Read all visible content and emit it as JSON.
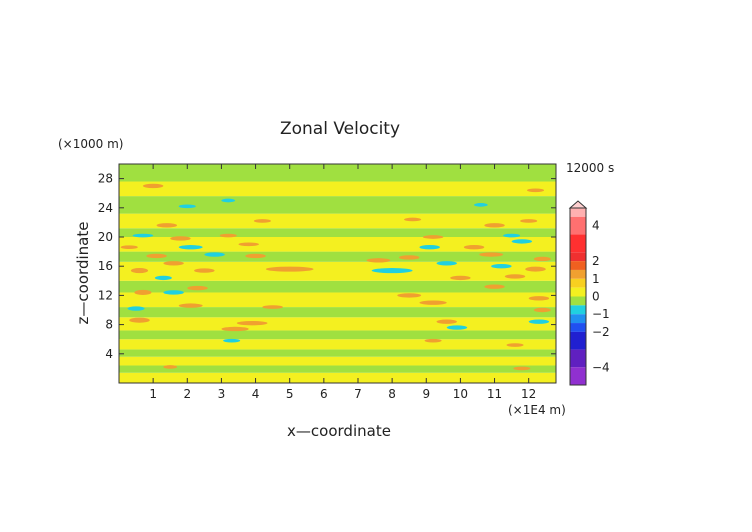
{
  "chart_data": {
    "type": "heatmap",
    "title": "Zonal Velocity",
    "xlabel": "x—coordinate",
    "ylabel": "z—coordinate",
    "x_unit": "(×1E4 m)",
    "y_unit": "(×1000 m)",
    "time_label": "12000 s",
    "xlim": [
      0,
      12.8
    ],
    "ylim": [
      0,
      30
    ],
    "x_ticks": [
      1,
      2,
      3,
      4,
      5,
      6,
      7,
      8,
      9,
      10,
      11,
      12
    ],
    "y_ticks": [
      4,
      8,
      12,
      16,
      20,
      24,
      28
    ],
    "background_level_color": "#e8f020",
    "bands": [
      {
        "y0": 0.0,
        "y1": 1.4,
        "color": "#f4f020"
      },
      {
        "y0": 1.4,
        "y1": 2.4,
        "color": "#a0e040"
      },
      {
        "y0": 2.4,
        "y1": 3.6,
        "color": "#f4f020"
      },
      {
        "y0": 3.6,
        "y1": 4.6,
        "color": "#a0e040"
      },
      {
        "y0": 4.6,
        "y1": 6.0,
        "color": "#f4f020"
      },
      {
        "y0": 6.0,
        "y1": 7.2,
        "color": "#a0e040"
      },
      {
        "y0": 7.2,
        "y1": 9.0,
        "color": "#f4f020"
      },
      {
        "y0": 9.0,
        "y1": 10.4,
        "color": "#a0e040"
      },
      {
        "y0": 10.4,
        "y1": 12.4,
        "color": "#f4f020"
      },
      {
        "y0": 12.4,
        "y1": 14.0,
        "color": "#a0e040"
      },
      {
        "y0": 14.0,
        "y1": 16.6,
        "color": "#f4f020"
      },
      {
        "y0": 16.6,
        "y1": 18.0,
        "color": "#a0e040"
      },
      {
        "y0": 18.0,
        "y1": 20.0,
        "color": "#f4f020"
      },
      {
        "y0": 20.0,
        "y1": 21.2,
        "color": "#a0e040"
      },
      {
        "y0": 21.2,
        "y1": 23.2,
        "color": "#f4f020"
      },
      {
        "y0": 23.2,
        "y1": 25.6,
        "color": "#a0e040"
      },
      {
        "y0": 25.6,
        "y1": 27.6,
        "color": "#f4f020"
      },
      {
        "y0": 27.6,
        "y1": 30.0,
        "color": "#a0e040"
      }
    ],
    "blobs": [
      {
        "x": 0.6,
        "y": 15.4,
        "rx": 0.25,
        "ry": 0.35,
        "color": "#f0a030"
      },
      {
        "x": 0.7,
        "y": 12.4,
        "rx": 0.25,
        "ry": 0.35,
        "color": "#f0a030"
      },
      {
        "x": 0.6,
        "y": 8.6,
        "rx": 0.3,
        "ry": 0.35,
        "color": "#f0a030"
      },
      {
        "x": 1.1,
        "y": 17.4,
        "rx": 0.3,
        "ry": 0.3,
        "color": "#f0a030"
      },
      {
        "x": 1.3,
        "y": 14.4,
        "rx": 0.25,
        "ry": 0.3,
        "color": "#20d0e0"
      },
      {
        "x": 0.5,
        "y": 10.2,
        "rx": 0.25,
        "ry": 0.3,
        "color": "#20d0e0"
      },
      {
        "x": 1.6,
        "y": 16.4,
        "rx": 0.3,
        "ry": 0.3,
        "color": "#f0a030"
      },
      {
        "x": 1.4,
        "y": 21.6,
        "rx": 0.3,
        "ry": 0.3,
        "color": "#f0a030"
      },
      {
        "x": 1.8,
        "y": 19.8,
        "rx": 0.3,
        "ry": 0.3,
        "color": "#f0a030"
      },
      {
        "x": 2.1,
        "y": 18.6,
        "rx": 0.35,
        "ry": 0.3,
        "color": "#20d0e0"
      },
      {
        "x": 2.5,
        "y": 15.4,
        "rx": 0.3,
        "ry": 0.3,
        "color": "#f0a030"
      },
      {
        "x": 2.3,
        "y": 13.0,
        "rx": 0.3,
        "ry": 0.3,
        "color": "#f0a030"
      },
      {
        "x": 2.1,
        "y": 10.6,
        "rx": 0.35,
        "ry": 0.3,
        "color": "#f0a030"
      },
      {
        "x": 1.6,
        "y": 12.4,
        "rx": 0.3,
        "ry": 0.3,
        "color": "#20d0e0"
      },
      {
        "x": 2.8,
        "y": 17.6,
        "rx": 0.3,
        "ry": 0.3,
        "color": "#20d0e0"
      },
      {
        "x": 3.2,
        "y": 20.2,
        "rx": 0.25,
        "ry": 0.25,
        "color": "#f0a030"
      },
      {
        "x": 3.4,
        "y": 7.4,
        "rx": 0.4,
        "ry": 0.3,
        "color": "#f0a030"
      },
      {
        "x": 3.9,
        "y": 8.2,
        "rx": 0.45,
        "ry": 0.3,
        "color": "#f0a030"
      },
      {
        "x": 3.3,
        "y": 5.8,
        "rx": 0.25,
        "ry": 0.25,
        "color": "#20d0e0"
      },
      {
        "x": 4.2,
        "y": 22.2,
        "rx": 0.25,
        "ry": 0.25,
        "color": "#f0a030"
      },
      {
        "x": 4.5,
        "y": 10.4,
        "rx": 0.3,
        "ry": 0.25,
        "color": "#f0a030"
      },
      {
        "x": 5.0,
        "y": 15.6,
        "rx": 0.7,
        "ry": 0.35,
        "color": "#f0a030"
      },
      {
        "x": 4.0,
        "y": 17.4,
        "rx": 0.3,
        "ry": 0.3,
        "color": "#f0a030"
      },
      {
        "x": 3.8,
        "y": 19.0,
        "rx": 0.3,
        "ry": 0.25,
        "color": "#f0a030"
      },
      {
        "x": 1.0,
        "y": 27.0,
        "rx": 0.3,
        "ry": 0.3,
        "color": "#f0a030"
      },
      {
        "x": 2.0,
        "y": 24.2,
        "rx": 0.25,
        "ry": 0.25,
        "color": "#20d0e0"
      },
      {
        "x": 3.2,
        "y": 25.0,
        "rx": 0.2,
        "ry": 0.25,
        "color": "#20d0e0"
      },
      {
        "x": 0.7,
        "y": 20.2,
        "rx": 0.3,
        "ry": 0.25,
        "color": "#20d0e0"
      },
      {
        "x": 0.3,
        "y": 18.6,
        "rx": 0.25,
        "ry": 0.25,
        "color": "#f0a030"
      },
      {
        "x": 1.5,
        "y": 2.2,
        "rx": 0.2,
        "ry": 0.25,
        "color": "#f0a030"
      },
      {
        "x": 7.6,
        "y": 16.8,
        "rx": 0.35,
        "ry": 0.3,
        "color": "#f0a030"
      },
      {
        "x": 8.0,
        "y": 15.4,
        "rx": 0.6,
        "ry": 0.35,
        "color": "#20d0e0"
      },
      {
        "x": 8.5,
        "y": 12.0,
        "rx": 0.35,
        "ry": 0.3,
        "color": "#f0a030"
      },
      {
        "x": 9.2,
        "y": 11.0,
        "rx": 0.4,
        "ry": 0.3,
        "color": "#f0a030"
      },
      {
        "x": 9.6,
        "y": 8.4,
        "rx": 0.3,
        "ry": 0.3,
        "color": "#f0a030"
      },
      {
        "x": 9.9,
        "y": 7.6,
        "rx": 0.3,
        "ry": 0.3,
        "color": "#20d0e0"
      },
      {
        "x": 9.2,
        "y": 5.8,
        "rx": 0.25,
        "ry": 0.25,
        "color": "#f0a030"
      },
      {
        "x": 8.5,
        "y": 17.2,
        "rx": 0.3,
        "ry": 0.3,
        "color": "#f0a030"
      },
      {
        "x": 9.1,
        "y": 18.6,
        "rx": 0.3,
        "ry": 0.3,
        "color": "#20d0e0"
      },
      {
        "x": 9.6,
        "y": 16.4,
        "rx": 0.3,
        "ry": 0.3,
        "color": "#20d0e0"
      },
      {
        "x": 10.0,
        "y": 14.4,
        "rx": 0.3,
        "ry": 0.3,
        "color": "#f0a030"
      },
      {
        "x": 10.4,
        "y": 18.6,
        "rx": 0.3,
        "ry": 0.3,
        "color": "#f0a030"
      },
      {
        "x": 10.9,
        "y": 17.6,
        "rx": 0.35,
        "ry": 0.3,
        "color": "#f0a030"
      },
      {
        "x": 11.2,
        "y": 16.0,
        "rx": 0.3,
        "ry": 0.3,
        "color": "#20d0e0"
      },
      {
        "x": 11.0,
        "y": 13.2,
        "rx": 0.3,
        "ry": 0.3,
        "color": "#f0a030"
      },
      {
        "x": 11.6,
        "y": 14.6,
        "rx": 0.3,
        "ry": 0.3,
        "color": "#f0a030"
      },
      {
        "x": 12.2,
        "y": 15.6,
        "rx": 0.3,
        "ry": 0.35,
        "color": "#f0a030"
      },
      {
        "x": 12.3,
        "y": 11.6,
        "rx": 0.3,
        "ry": 0.3,
        "color": "#f0a030"
      },
      {
        "x": 12.4,
        "y": 10.0,
        "rx": 0.25,
        "ry": 0.3,
        "color": "#f0a030"
      },
      {
        "x": 12.3,
        "y": 8.4,
        "rx": 0.3,
        "ry": 0.3,
        "color": "#20d0e0"
      },
      {
        "x": 11.8,
        "y": 19.4,
        "rx": 0.3,
        "ry": 0.3,
        "color": "#20d0e0"
      },
      {
        "x": 12.4,
        "y": 17.0,
        "rx": 0.25,
        "ry": 0.3,
        "color": "#f0a030"
      },
      {
        "x": 11.0,
        "y": 21.6,
        "rx": 0.3,
        "ry": 0.3,
        "color": "#f0a030"
      },
      {
        "x": 11.5,
        "y": 20.2,
        "rx": 0.25,
        "ry": 0.25,
        "color": "#20d0e0"
      },
      {
        "x": 12.0,
        "y": 22.2,
        "rx": 0.25,
        "ry": 0.25,
        "color": "#f0a030"
      },
      {
        "x": 10.6,
        "y": 24.4,
        "rx": 0.2,
        "ry": 0.25,
        "color": "#20d0e0"
      },
      {
        "x": 8.6,
        "y": 22.4,
        "rx": 0.25,
        "ry": 0.25,
        "color": "#f0a030"
      },
      {
        "x": 9.2,
        "y": 20.0,
        "rx": 0.3,
        "ry": 0.25,
        "color": "#f0a030"
      },
      {
        "x": 12.2,
        "y": 26.4,
        "rx": 0.25,
        "ry": 0.25,
        "color": "#f0a030"
      },
      {
        "x": 11.8,
        "y": 2.0,
        "rx": 0.25,
        "ry": 0.25,
        "color": "#f0a030"
      },
      {
        "x": 11.6,
        "y": 5.2,
        "rx": 0.25,
        "ry": 0.25,
        "color": "#f0a030"
      }
    ],
    "colorbar": {
      "tick_labels": [
        "4",
        "2",
        "1",
        "0",
        "−1",
        "−2",
        "−4"
      ],
      "tick_levels": [
        4,
        2,
        1,
        0,
        -1,
        -2,
        -4
      ],
      "range": [
        -5,
        5
      ],
      "colors": [
        {
          "from": 4.5,
          "to": 5.0,
          "color": "#ffb0b0"
        },
        {
          "from": 3.5,
          "to": 4.5,
          "color": "#ff7070"
        },
        {
          "from": 2.5,
          "to": 3.5,
          "color": "#ff3030"
        },
        {
          "from": 2.0,
          "to": 2.5,
          "color": "#f03030"
        },
        {
          "from": 1.5,
          "to": 2.0,
          "color": "#f06020"
        },
        {
          "from": 1.0,
          "to": 1.5,
          "color": "#f0a030"
        },
        {
          "from": 0.5,
          "to": 1.0,
          "color": "#f8d020"
        },
        {
          "from": 0.0,
          "to": 0.5,
          "color": "#f4f020"
        },
        {
          "from": -0.5,
          "to": 0.0,
          "color": "#a0e040"
        },
        {
          "from": -1.0,
          "to": -0.5,
          "color": "#20d0e0"
        },
        {
          "from": -1.5,
          "to": -1.0,
          "color": "#2090f0"
        },
        {
          "from": -2.0,
          "to": -1.5,
          "color": "#2050f0"
        },
        {
          "from": -3.0,
          "to": -2.0,
          "color": "#2020d0"
        },
        {
          "from": -4.0,
          "to": -3.0,
          "color": "#6020c0"
        },
        {
          "from": -5.0,
          "to": -4.0,
          "color": "#9030d0"
        }
      ]
    }
  }
}
